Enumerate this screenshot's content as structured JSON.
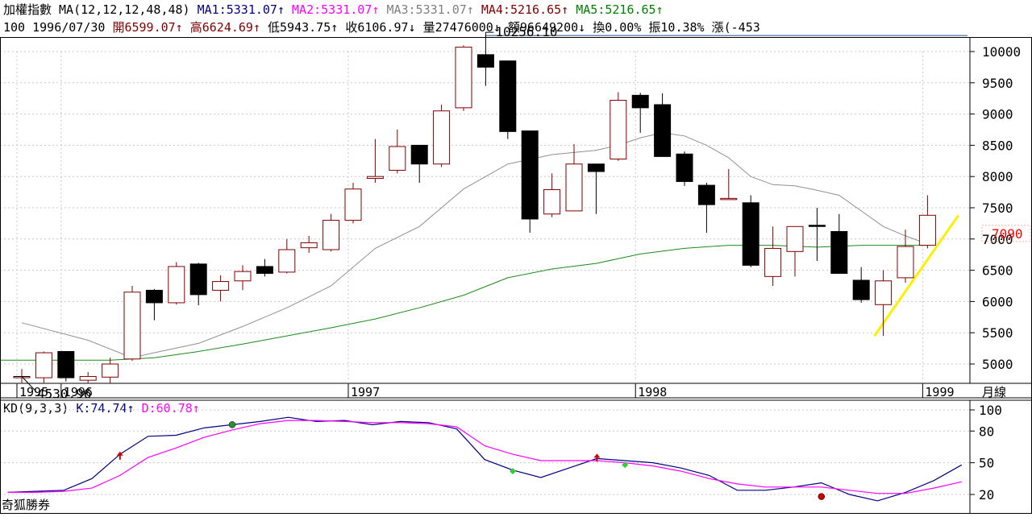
{
  "header": {
    "line1": [
      {
        "text": "加權指數 MA(12,12,12,48,48) ",
        "color": "#000000"
      },
      {
        "text": "MA1:5331.07↑ ",
        "color": "#000080"
      },
      {
        "text": "MA2:5331.07↑ ",
        "color": "#ff00ff"
      },
      {
        "text": "MA3:5331.07↑ ",
        "color": "#808080"
      },
      {
        "text": "MA4:5216.65↑ ",
        "color": "#800000"
      },
      {
        "text": "MA5:5216.65↑",
        "color": "#008000"
      }
    ],
    "line2": [
      {
        "text": "100 1996/07/30 ",
        "color": "#000000"
      },
      {
        "text": "開6599.07↑ ",
        "color": "#800000"
      },
      {
        "text": "高6624.69↑ ",
        "color": "#800000"
      },
      {
        "text": "低5943.75↑ ",
        "color": "#000000"
      },
      {
        "text": "收6106.97↓ ",
        "color": "#000000"
      },
      {
        "text": "量27476000↓ ",
        "color": "#000000"
      },
      {
        "text": "額96649200↓ ",
        "color": "#000000"
      },
      {
        "text": "換0.00% ",
        "color": "#000000"
      },
      {
        "text": "振10.38% ",
        "color": "#000000"
      },
      {
        "text": "漲(-453",
        "color": "#000000"
      }
    ]
  },
  "chart_data": [
    {
      "type": "candlestick",
      "series_name": "加權指數",
      "period_label": "月線",
      "y_ticks": [
        5000,
        5500,
        6000,
        6500,
        7000,
        7500,
        8000,
        8500,
        9000,
        9500,
        10000
      ],
      "ylim": [
        4400,
        10500
      ],
      "x_year_labels": [
        {
          "label": "1995",
          "index": 0
        },
        {
          "label": "1996",
          "index": 2
        },
        {
          "label": "1997",
          "index": 15
        },
        {
          "label": "1998",
          "index": 28
        },
        {
          "label": "1999",
          "index": 41
        }
      ],
      "candles": [
        {
          "o": 4800,
          "h": 4920,
          "l": 4700,
          "c": 4800
        },
        {
          "o": 4780,
          "h": 5200,
          "l": 4700,
          "c": 5180
        },
        {
          "o": 5200,
          "h": 5200,
          "l": 4720,
          "c": 4780
        },
        {
          "o": 4740,
          "h": 4870,
          "l": 4700,
          "c": 4800
        },
        {
          "o": 4790,
          "h": 5100,
          "l": 4690,
          "c": 5000
        },
        {
          "o": 5080,
          "h": 6250,
          "l": 5050,
          "c": 6150
        },
        {
          "o": 6180,
          "h": 6200,
          "l": 5700,
          "c": 5980
        },
        {
          "o": 5980,
          "h": 6630,
          "l": 5950,
          "c": 6560
        },
        {
          "o": 6600,
          "h": 6620,
          "l": 5940,
          "c": 6110
        },
        {
          "o": 6180,
          "h": 6420,
          "l": 6000,
          "c": 6320
        },
        {
          "o": 6330,
          "h": 6580,
          "l": 6180,
          "c": 6480
        },
        {
          "o": 6560,
          "h": 6680,
          "l": 6400,
          "c": 6450
        },
        {
          "o": 6470,
          "h": 7000,
          "l": 6450,
          "c": 6830
        },
        {
          "o": 6860,
          "h": 7050,
          "l": 6780,
          "c": 6940
        },
        {
          "o": 6830,
          "h": 7400,
          "l": 6800,
          "c": 7300
        },
        {
          "o": 7300,
          "h": 7900,
          "l": 7250,
          "c": 7800
        },
        {
          "o": 7970,
          "h": 8600,
          "l": 7900,
          "c": 8000
        },
        {
          "o": 8100,
          "h": 8750,
          "l": 8050,
          "c": 8480
        },
        {
          "o": 8500,
          "h": 8500,
          "l": 7900,
          "c": 8200
        },
        {
          "o": 8200,
          "h": 9150,
          "l": 8150,
          "c": 9050
        },
        {
          "o": 9100,
          "h": 10100,
          "l": 9050,
          "c": 10070
        },
        {
          "o": 9950,
          "h": 10256.1,
          "l": 9450,
          "c": 9750
        },
        {
          "o": 9850,
          "h": 9850,
          "l": 8600,
          "c": 8720
        },
        {
          "o": 8730,
          "h": 8730,
          "l": 7100,
          "c": 7320
        },
        {
          "o": 7400,
          "h": 8050,
          "l": 7350,
          "c": 7790
        },
        {
          "o": 7450,
          "h": 8520,
          "l": 7450,
          "c": 8200
        },
        {
          "o": 8200,
          "h": 8200,
          "l": 7400,
          "c": 8080
        },
        {
          "o": 8280,
          "h": 9350,
          "l": 8250,
          "c": 9220
        },
        {
          "o": 9300,
          "h": 9340,
          "l": 8700,
          "c": 9100
        },
        {
          "o": 9150,
          "h": 9330,
          "l": 8320,
          "c": 8320
        },
        {
          "o": 8360,
          "h": 8400,
          "l": 7850,
          "c": 7920
        },
        {
          "o": 7860,
          "h": 7900,
          "l": 7100,
          "c": 7550
        },
        {
          "o": 7650,
          "h": 8120,
          "l": 7650,
          "c": 7650
        },
        {
          "o": 7580,
          "h": 7700,
          "l": 6550,
          "c": 6580
        },
        {
          "o": 6400,
          "h": 7200,
          "l": 6250,
          "c": 6850
        },
        {
          "o": 6800,
          "h": 7200,
          "l": 6400,
          "c": 7200
        },
        {
          "o": 7220,
          "h": 7500,
          "l": 6650,
          "c": 7210
        },
        {
          "o": 7120,
          "h": 7400,
          "l": 6450,
          "c": 6450
        },
        {
          "o": 6340,
          "h": 6550,
          "l": 5980,
          "c": 6030
        },
        {
          "o": 5950,
          "h": 6500,
          "l": 5450,
          "c": 6330
        },
        {
          "o": 6380,
          "h": 7150,
          "l": 6300,
          "c": 6880
        },
        {
          "o": 6900,
          "h": 7700,
          "l": 6850,
          "c": 7380
        }
      ],
      "ma_gray": [
        [
          0,
          5660
        ],
        [
          3,
          5380
        ],
        [
          5,
          5100
        ],
        [
          6,
          5180
        ],
        [
          8,
          5330
        ],
        [
          10,
          5600
        ],
        [
          12,
          5900
        ],
        [
          14,
          6250
        ],
        [
          16,
          6850
        ],
        [
          18,
          7200
        ],
        [
          20,
          7800
        ],
        [
          22,
          8200
        ],
        [
          24,
          8350
        ],
        [
          26,
          8420
        ],
        [
          27,
          8500
        ],
        [
          28,
          8620
        ],
        [
          29,
          8700
        ],
        [
          30,
          8650
        ],
        [
          31,
          8500
        ],
        [
          32,
          8300
        ],
        [
          33,
          8000
        ],
        [
          34,
          7870
        ],
        [
          35,
          7850
        ],
        [
          36,
          7780
        ],
        [
          37,
          7700
        ],
        [
          38,
          7450
        ],
        [
          39,
          7200
        ],
        [
          40,
          7050
        ],
        [
          41,
          6920
        ]
      ],
      "ma_green": [
        [
          -1,
          5060
        ],
        [
          4,
          5060
        ],
        [
          6,
          5100
        ],
        [
          8,
          5200
        ],
        [
          10,
          5320
        ],
        [
          12,
          5450
        ],
        [
          14,
          5580
        ],
        [
          16,
          5720
        ],
        [
          18,
          5900
        ],
        [
          20,
          6100
        ],
        [
          22,
          6380
        ],
        [
          24,
          6520
        ],
        [
          26,
          6610
        ],
        [
          28,
          6760
        ],
        [
          30,
          6850
        ],
        [
          32,
          6900
        ],
        [
          34,
          6900
        ],
        [
          36,
          6870
        ],
        [
          38,
          6900
        ],
        [
          40,
          6900
        ],
        [
          41,
          6900
        ]
      ],
      "trend_line": [
        [
          38.6,
          5450
        ],
        [
          42.4,
          7380
        ]
      ],
      "high_line": {
        "value": 10256.1,
        "from_index": 21
      },
      "annotations": [
        {
          "label": "10256.10",
          "index": 21,
          "value": 10256.1
        },
        {
          "label": "4530.96",
          "index": 0,
          "value": 4530.96
        }
      ],
      "current_price_label": "7090",
      "current_price_color": "#ff0000"
    },
    {
      "type": "line",
      "title": "KD(9,3,3)",
      "series": [
        {
          "name": "K",
          "label": "K:74.74↑",
          "color": "#000080",
          "points": [
            [
              -1,
              22
            ],
            [
              1,
              23
            ],
            [
              3,
              24
            ],
            [
              5,
              35
            ],
            [
              7,
              58
            ],
            [
              9,
              75
            ],
            [
              11,
              76
            ],
            [
              13,
              83
            ],
            [
              15,
              86
            ],
            [
              17,
              89
            ],
            [
              19,
              93
            ],
            [
              21,
              89
            ],
            [
              23,
              90
            ],
            [
              25,
              86
            ],
            [
              27,
              89
            ],
            [
              29,
              88
            ],
            [
              31,
              82
            ],
            [
              33,
              53
            ],
            [
              35,
              43
            ],
            [
              37,
              36
            ],
            [
              39,
              45
            ],
            [
              41,
              54
            ],
            [
              43,
              52
            ],
            [
              45,
              50
            ],
            [
              47,
              45
            ],
            [
              49,
              38
            ],
            [
              51,
              24
            ],
            [
              53,
              24
            ],
            [
              55,
              27
            ],
            [
              57,
              31
            ],
            [
              59,
              20
            ],
            [
              61,
              14
            ],
            [
              63,
              22
            ],
            [
              65,
              33
            ],
            [
              67,
              48
            ]
          ]
        },
        {
          "name": "D",
          "label": "D:60.78↑",
          "color": "#ff00ff",
          "points": [
            [
              -1,
              22
            ],
            [
              1,
              22
            ],
            [
              3,
              23
            ],
            [
              5,
              26
            ],
            [
              7,
              38
            ],
            [
              9,
              55
            ],
            [
              11,
              64
            ],
            [
              13,
              74
            ],
            [
              15,
              81
            ],
            [
              17,
              87
            ],
            [
              19,
              90
            ],
            [
              21,
              90
            ],
            [
              23,
              89
            ],
            [
              25,
              88
            ],
            [
              27,
              88
            ],
            [
              29,
              87
            ],
            [
              31,
              84
            ],
            [
              33,
              66
            ],
            [
              35,
              58
            ],
            [
              37,
              52
            ],
            [
              39,
              52
            ],
            [
              41,
              52
            ],
            [
              43,
              50
            ],
            [
              45,
              47
            ],
            [
              47,
              42
            ],
            [
              49,
              35
            ],
            [
              51,
              30
            ],
            [
              53,
              27
            ],
            [
              55,
              27
            ],
            [
              57,
              27
            ],
            [
              59,
              24
            ],
            [
              61,
              21
            ],
            [
              63,
              21
            ],
            [
              65,
              26
            ],
            [
              67,
              32
            ]
          ]
        }
      ],
      "y_ticks": [
        20,
        50,
        80,
        100
      ],
      "ylim": [
        10,
        100
      ],
      "markers": [
        {
          "i": 7,
          "v": 56,
          "kind": "arrow-up",
          "color": "#cc0000"
        },
        {
          "i": 15,
          "v": 86,
          "kind": "dot",
          "color": "#2e8b2e"
        },
        {
          "i": 35,
          "v": 42,
          "kind": "diamond",
          "color": "#33cc33"
        },
        {
          "i": 41,
          "v": 54,
          "kind": "arrow-up",
          "color": "#cc0000"
        },
        {
          "i": 43,
          "v": 48,
          "kind": "diamond",
          "color": "#33cc33"
        },
        {
          "i": 57,
          "v": 18,
          "kind": "dot",
          "color": "#cc0000"
        }
      ]
    }
  ],
  "footer": {
    "brand": "奇狐勝券"
  }
}
